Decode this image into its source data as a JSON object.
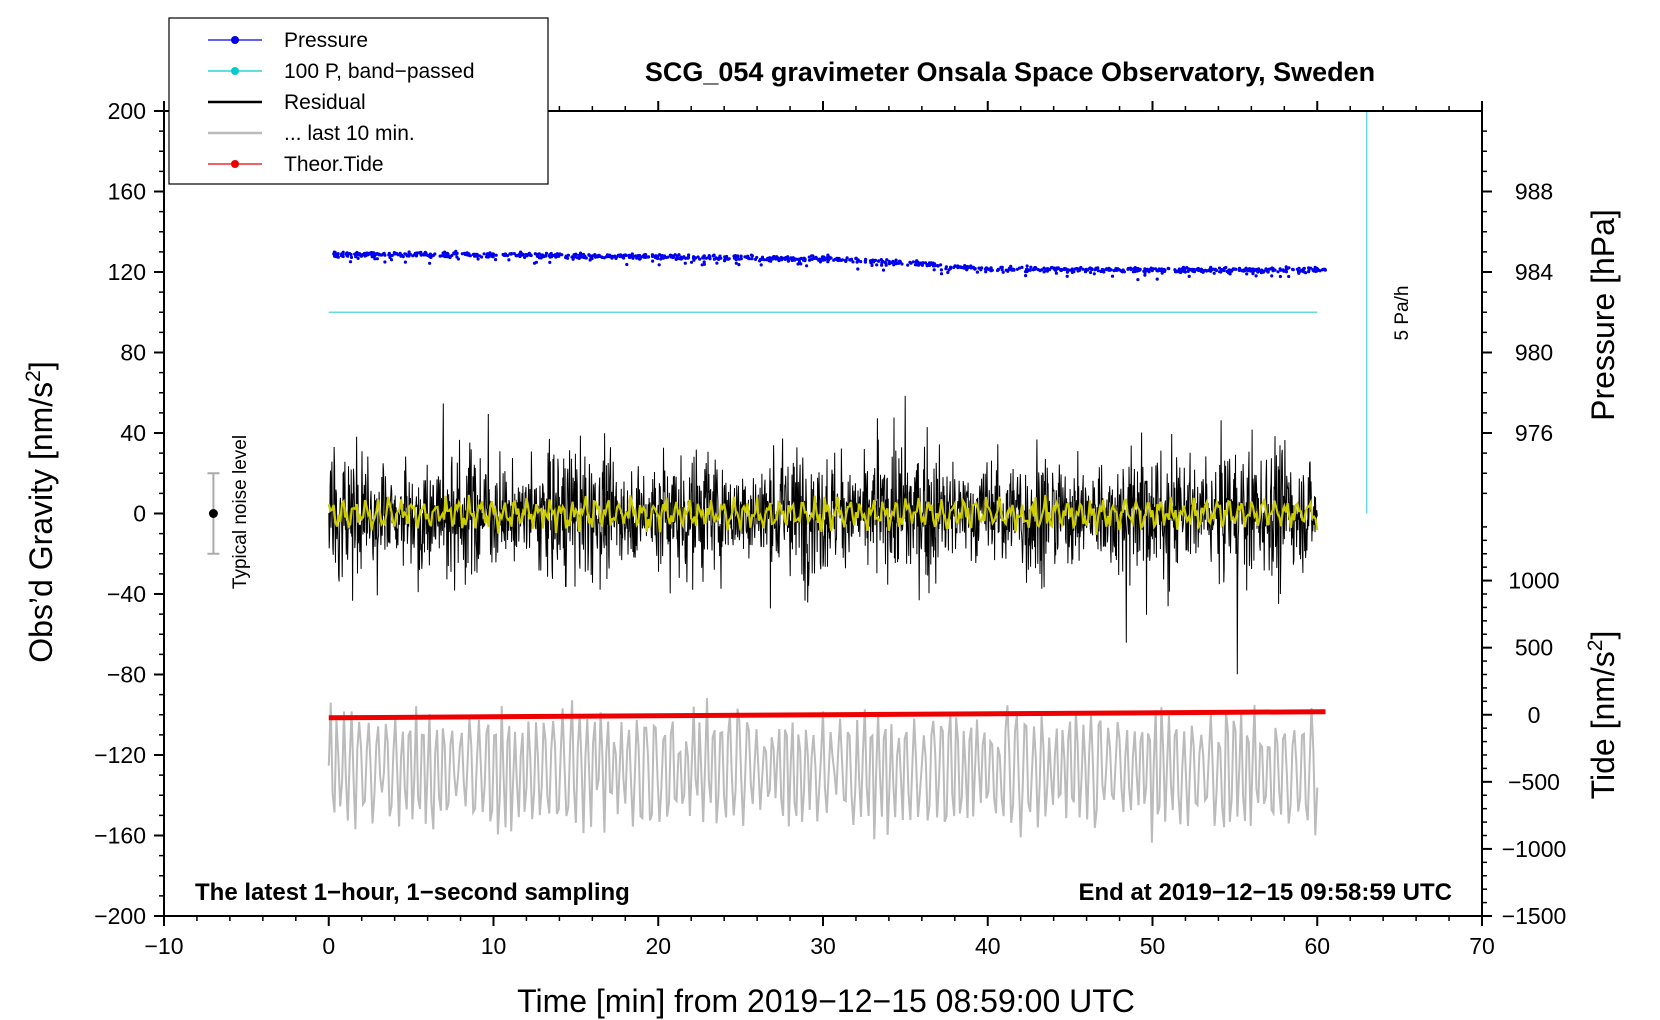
{
  "chart_data": {
    "type": "line",
    "title": "SCG_054 gravimeter Onsala Space Observatory, Sweden",
    "xlabel": "Time [min] from 2019−12−15 08:59:00 UTC",
    "ylabel_left_main": "Obs’d Gravity [nm/s",
    "ylabel_left_sup": "2",
    "ylabel_left_end": "]",
    "ylabel_right_top": "Pressure [hPa]",
    "ylabel_right_bottom_main": "Tide [nm/s",
    "ylabel_right_bottom_sup": "2",
    "ylabel_right_bottom_end": "]",
    "xlim": [
      -10,
      70
    ],
    "ylim": [
      -200,
      200
    ],
    "x_ticks": [
      -10,
      0,
      10,
      20,
      30,
      40,
      50,
      60,
      70
    ],
    "x_tick_labels": [
      "−10",
      "0",
      "10",
      "20",
      "30",
      "40",
      "50",
      "60",
      "70"
    ],
    "y_ticks": [
      -200,
      -160,
      -120,
      -80,
      -40,
      0,
      40,
      80,
      120,
      160,
      200
    ],
    "y_tick_labels": [
      "−200",
      "−160",
      "−120",
      "−80",
      "−40",
      "0",
      "40",
      "80",
      "120",
      "160",
      "200"
    ],
    "pressure_axis": {
      "ticks": [
        976,
        980,
        984,
        988
      ],
      "tick_labels": [
        "976",
        "980",
        "984",
        "988"
      ],
      "pressure_at_gravity_0": 972,
      "gravity_per_hpa": 10
    },
    "tide_axis": {
      "ticks": [
        -1500,
        -1000,
        -500,
        0,
        500,
        1000
      ],
      "tick_labels": [
        "−1500",
        "−1000",
        "−500",
        "0",
        "500",
        "1000"
      ],
      "tide_at_gravity_minus200": -1500,
      "tide_at_gravity_0": 1500
    },
    "legend": {
      "position": "top-left",
      "entries": [
        {
          "label": "Pressure",
          "color": "#0000ee",
          "marker": true
        },
        {
          "label": "100 P, band−passed",
          "color": "#00cccc",
          "marker": true
        },
        {
          "label": "Residual",
          "color": "#000000",
          "marker": false
        },
        {
          "label": "... last 10 min.",
          "color": "#bbbbbb",
          "marker": false
        },
        {
          "label": "Theor.Tide",
          "color": "#ee0000",
          "marker": true
        }
      ]
    },
    "series": [
      {
        "name": "Pressure",
        "color": "#0000ee",
        "style": "points",
        "time_min": [
          0,
          10,
          20,
          30,
          36,
          40,
          50,
          60.5
        ],
        "gravity_scale_values": [
          129,
          128.5,
          127.5,
          126.5,
          124,
          121.5,
          121,
          121
        ]
      },
      {
        "name": "100 P, band−passed",
        "color": "#66dddd",
        "style": "line",
        "time_min": [
          0,
          60
        ],
        "gravity_scale_values": [
          100,
          100
        ]
      },
      {
        "name": "Residual",
        "color": "#000000",
        "style": "noise",
        "time_min": [
          0,
          60
        ],
        "typical_amplitude": 40,
        "min": -85,
        "max": 80
      },
      {
        "name": "Residual filtered",
        "color": "#cccc00",
        "style": "line",
        "time_min": [
          0,
          60
        ],
        "typical_amplitude": 8
      },
      {
        "name": "... last 10 min.",
        "color": "#bbbbbb",
        "style": "line",
        "time_min": [
          0,
          60
        ],
        "gravity_scale_center": -127,
        "gravity_scale_min": -178,
        "gravity_scale_max": -76
      },
      {
        "name": "Theor.Tide",
        "color": "#ee0000",
        "style": "thick-line",
        "time_min": [
          0,
          60.5
        ],
        "gravity_scale_values": [
          -101.5,
          -98.5
        ]
      }
    ],
    "noise_level": {
      "label": "Typical noise level",
      "time_min": -7,
      "center": 0,
      "low": -20,
      "high": 20
    },
    "rate_marker": {
      "label": "5 Pa/h",
      "time_min": 63,
      "from": 0,
      "to": 200,
      "color": "#66dddd"
    },
    "annotations": {
      "bottom_left": "The latest 1−hour, 1−second sampling",
      "bottom_right": "End at 2019−12−15 09:58:59 UTC"
    }
  }
}
